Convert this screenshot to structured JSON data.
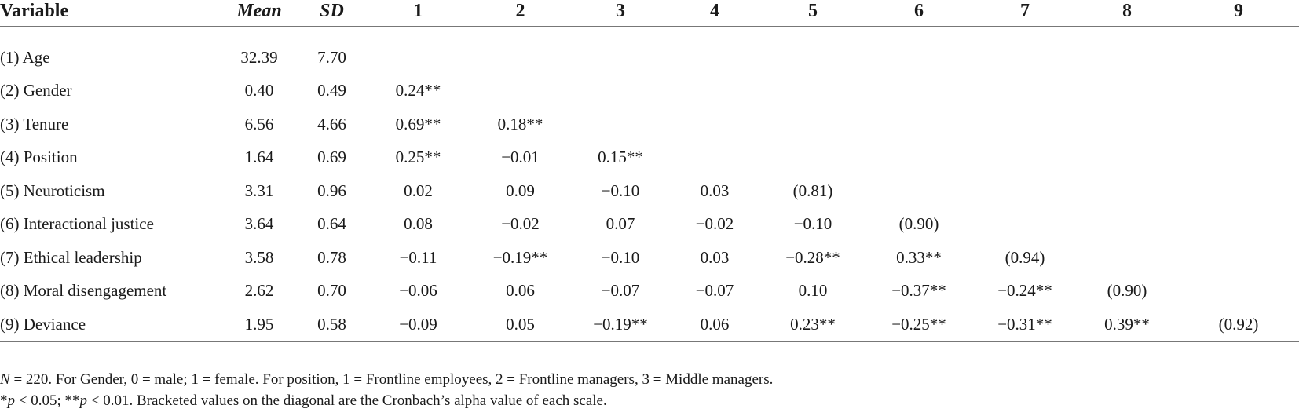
{
  "table": {
    "headers": [
      "Variable",
      "Mean",
      "SD",
      "1",
      "2",
      "3",
      "4",
      "5",
      "6",
      "7",
      "8",
      "9"
    ],
    "rows": [
      [
        "(1) Age",
        "32.39",
        "7.70",
        "",
        "",
        "",
        "",
        "",
        "",
        "",
        "",
        ""
      ],
      [
        "(2) Gender",
        "0.40",
        "0.49",
        "0.24**",
        "",
        "",
        "",
        "",
        "",
        "",
        "",
        ""
      ],
      [
        "(3) Tenure",
        "6.56",
        "4.66",
        "0.69**",
        "0.18**",
        "",
        "",
        "",
        "",
        "",
        "",
        ""
      ],
      [
        "(4) Position",
        "1.64",
        "0.69",
        "0.25**",
        "−0.01",
        "0.15**",
        "",
        "",
        "",
        "",
        "",
        ""
      ],
      [
        "(5) Neuroticism",
        "3.31",
        "0.96",
        "0.02",
        "0.09",
        "−0.10",
        "0.03",
        "(0.81)",
        "",
        "",
        "",
        ""
      ],
      [
        "(6) Interactional justice",
        "3.64",
        "0.64",
        "0.08",
        "−0.02",
        "0.07",
        "−0.02",
        "−0.10",
        "(0.90)",
        "",
        "",
        ""
      ],
      [
        "(7) Ethical leadership",
        "3.58",
        "0.78",
        "−0.11",
        "−0.19**",
        "−0.10",
        "0.03",
        "−0.28**",
        "0.33**",
        "(0.94)",
        "",
        ""
      ],
      [
        "(8) Moral disengagement",
        "2.62",
        "0.70",
        "−0.06",
        "0.06",
        "−0.07",
        "−0.07",
        "0.10",
        "−0.37**",
        "−0.24**",
        "(0.90)",
        ""
      ],
      [
        "(9) Deviance",
        "1.95",
        "0.58",
        "−0.09",
        "0.05",
        "−0.19**",
        "0.06",
        "0.23**",
        "−0.25**",
        "−0.31**",
        "0.39**",
        "(0.92)"
      ]
    ]
  },
  "notes": {
    "line1_n": "N",
    "line1_rest": " = 220. For Gender, 0 = male; 1 = female. For position, 1 = Frontline employees, 2 = Frontline managers, 3 = Middle managers.",
    "line2_star1": "*",
    "line2_p1": "p",
    "line2_mid": " < 0.05; **",
    "line2_p2": "p",
    "line2_rest": " < 0.01. Bracketed values on the diagonal are the Cronbach’s alpha value of each scale."
  }
}
